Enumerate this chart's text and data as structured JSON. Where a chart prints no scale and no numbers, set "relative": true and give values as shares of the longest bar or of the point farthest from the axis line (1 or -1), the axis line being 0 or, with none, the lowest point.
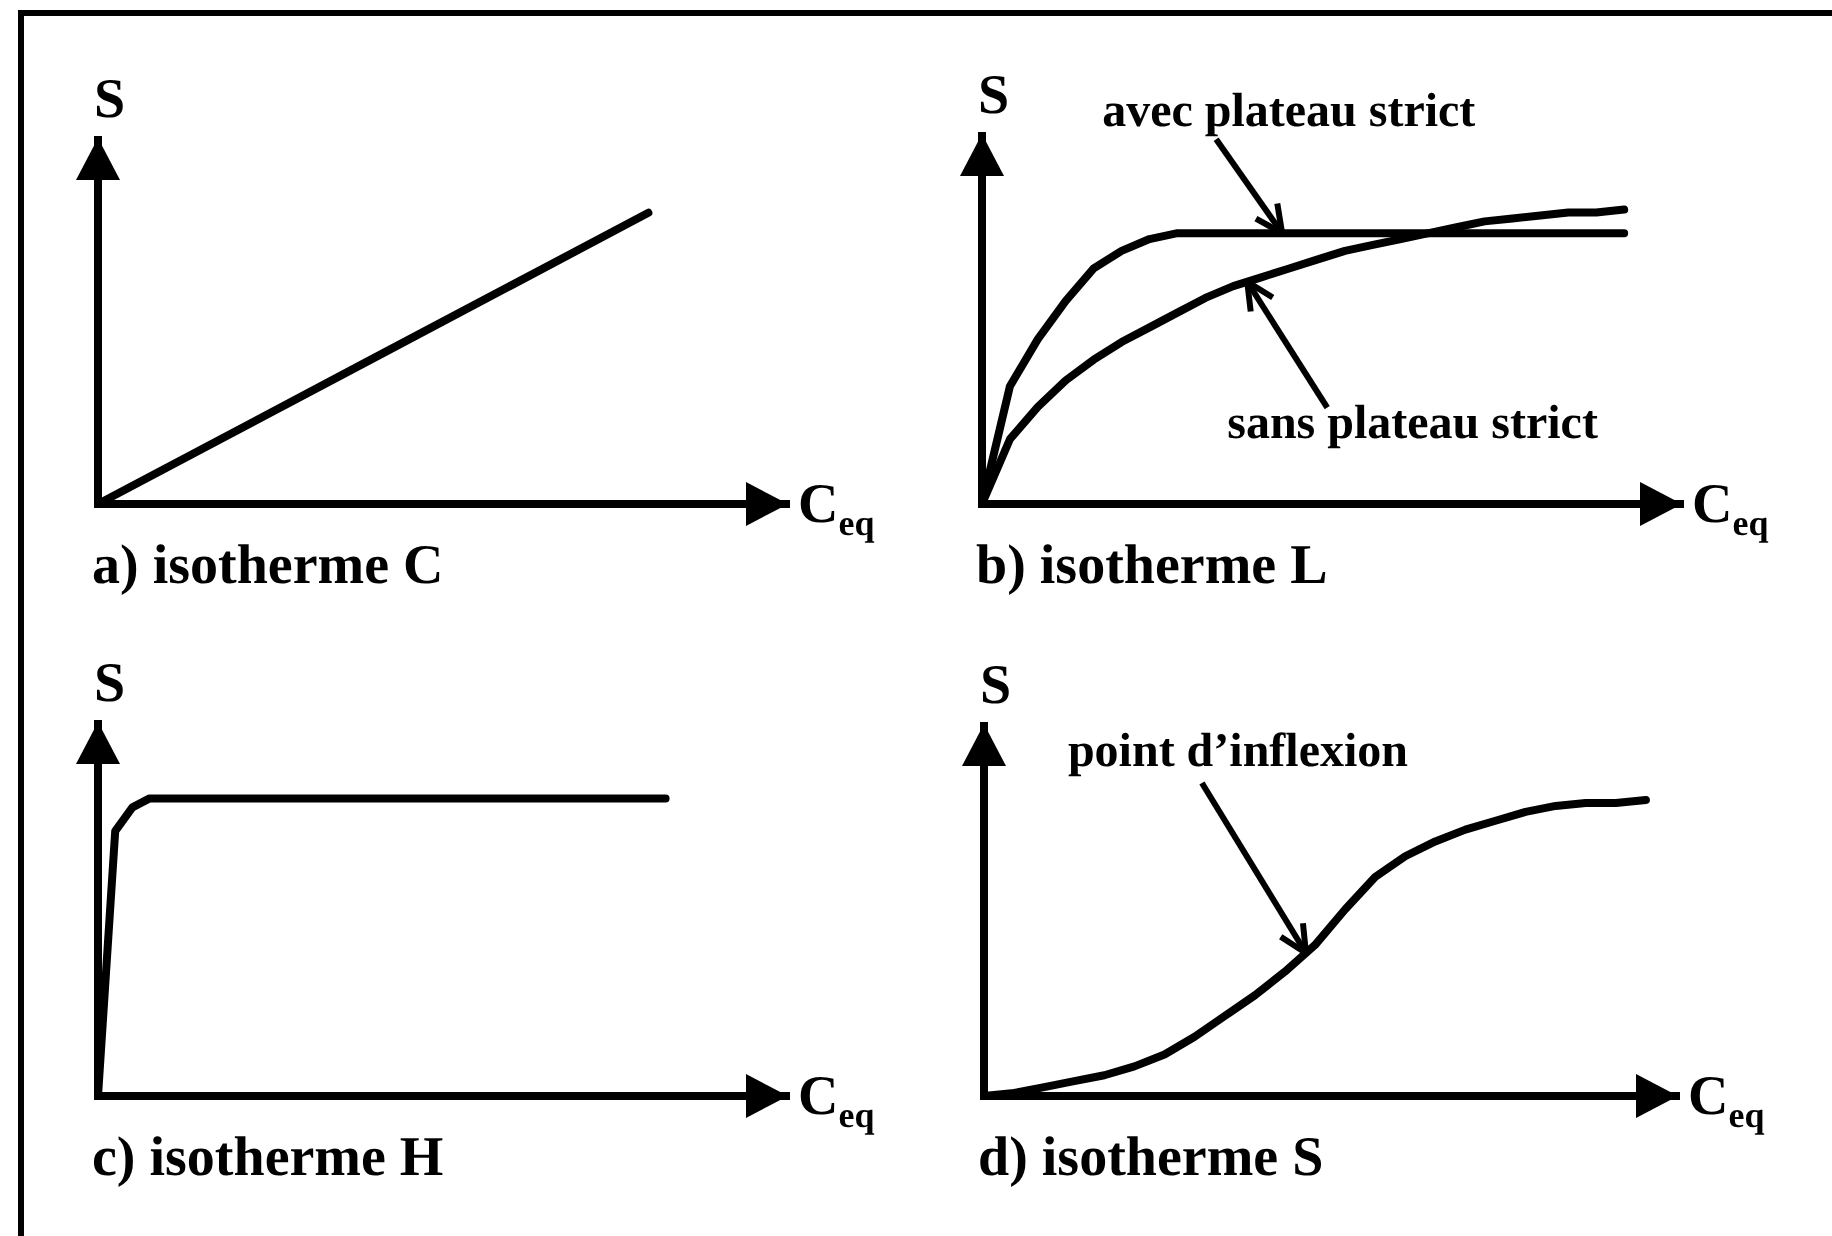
{
  "chart_data": [
    {
      "type": "line",
      "title": "a) isotherme C",
      "xlabel": "C$_{eq}$",
      "ylabel": "S",
      "categories": [
        null,
        null,
        null,
        null,
        null,
        null
      ],
      "values": [
        0,
        0.25,
        0.5,
        0.75,
        1,
        null
      ],
      "color": "#000000",
      "relative": true,
      "marker": "none"
    },
    {
      "type": "line",
      "title": "b) isotherme L",
      "xlabel": "C$_{eq}$",
      "ylabel": "S",
      "categories": [
        null,
        null,
        null,
        null,
        null,
        null,
        null,
        null,
        null,
        null,
        null,
        null,
        null,
        null,
        null,
        null,
        null,
        null,
        null,
        null,
        null,
        null,
        null,
        null,
        null,
        null
      ],
      "series": [
        {
          "name": "avec plateau strict",
          "color": "#000000",
          "values": [
            0,
            0.4,
            0.56,
            0.69,
            0.8,
            0.86,
            0.9,
            0.92,
            0.92,
            0.92,
            0.92,
            0.92,
            0.92,
            0.92,
            0.92,
            0.92,
            0.92,
            0.92,
            0.92,
            0.92,
            0.92,
            0.92,
            0.92,
            0.92,
            null,
            null
          ]
        },
        {
          "name": "sans plateau strict",
          "color": "#000000",
          "values": [
            0,
            0.22,
            0.33,
            0.42,
            0.49,
            0.55,
            0.6,
            0.65,
            0.7,
            0.74,
            0.77,
            0.8,
            0.83,
            0.86,
            0.88,
            0.9,
            0.92,
            0.94,
            0.96,
            0.97,
            0.98,
            0.99,
            0.99,
            1,
            null,
            null
          ]
        }
      ],
      "relative": true,
      "marker": "none"
    },
    {
      "type": "line",
      "title": "c) isotherme H",
      "xlabel": "C$_{eq}$",
      "ylabel": "S",
      "categories": [
        null,
        null,
        null,
        null,
        null,
        null,
        null,
        null,
        null,
        null,
        null,
        null,
        null,
        null,
        null,
        null,
        null,
        null,
        null,
        null,
        null,
        null,
        null,
        null,
        null,
        null,
        null,
        null,
        null,
        null,
        null,
        null,
        null,
        null,
        null,
        null,
        null,
        null,
        null,
        null,
        null
      ],
      "values": [
        0,
        0.89,
        0.97,
        1,
        1,
        1,
        1,
        1,
        1,
        1,
        1,
        1,
        1,
        1,
        1,
        1,
        1,
        1,
        1,
        1,
        1,
        1,
        1,
        1,
        1,
        1,
        1,
        1,
        1,
        1,
        1,
        1,
        1,
        1,
        null,
        null,
        null,
        null,
        null,
        null,
        null
      ],
      "color": "#000000",
      "relative": true,
      "marker": "none"
    },
    {
      "type": "line",
      "title": "d) isotherme S",
      "xlabel": "C$_{eq}$",
      "ylabel": "S",
      "categories": [
        null,
        null,
        null,
        null,
        null,
        null,
        null,
        null,
        null,
        null,
        null,
        null,
        null,
        null,
        null,
        null,
        null,
        null,
        null,
        null,
        null,
        null,
        null,
        null
      ],
      "values": [
        0,
        0.01,
        0.03,
        0.05,
        0.07,
        0.1,
        0.14,
        0.2,
        0.27,
        0.34,
        0.42,
        0.51,
        0.63,
        0.74,
        0.81,
        0.86,
        0.9,
        0.93,
        0.96,
        0.98,
        0.99,
        0.99,
        1,
        null
      ],
      "color": "#000000",
      "relative": true,
      "marker": "none",
      "annotations": [
        "point d’inflexion"
      ]
    }
  ]
}
